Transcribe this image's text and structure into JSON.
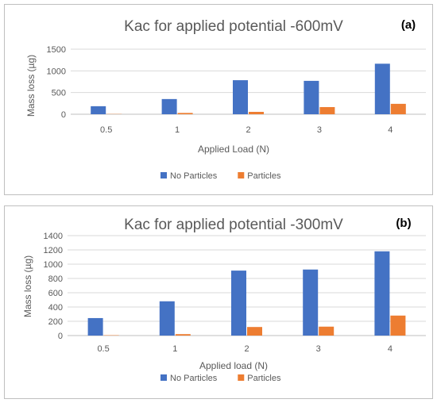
{
  "chart_data": [
    {
      "type": "bar",
      "tag": "(a)",
      "title": "Kac for applied potential -600mV",
      "xlabel": "Applied Load (N)",
      "ylabel": "Mass loss (µg)",
      "categories": [
        "0.5",
        "1",
        "2",
        "3",
        "4"
      ],
      "ylim": [
        0,
        1500
      ],
      "yticks": [
        0,
        500,
        1000,
        1500
      ],
      "grid": true,
      "legend_position": "bottom",
      "series": [
        {
          "name": "No Particles",
          "color": "#4472C4",
          "values": [
            185,
            350,
            785,
            770,
            1165
          ]
        },
        {
          "name": "Particles",
          "color": "#ED7D31",
          "values": [
            5,
            30,
            55,
            165,
            240
          ]
        }
      ]
    },
    {
      "type": "bar",
      "tag": "(b)",
      "title": "Kac for applied potential -300mV",
      "xlabel": "Applied load (N)",
      "ylabel": "Mass loss (µg)",
      "categories": [
        "0.5",
        "1",
        "2",
        "3",
        "4"
      ],
      "ylim": [
        0,
        1400
      ],
      "yticks": [
        0,
        200,
        400,
        600,
        800,
        1000,
        1200,
        1400
      ],
      "grid": true,
      "legend_position": "bottom",
      "series": [
        {
          "name": "No Particles",
          "color": "#4472C4",
          "values": [
            245,
            480,
            910,
            925,
            1180
          ]
        },
        {
          "name": "Particles",
          "color": "#ED7D31",
          "values": [
            5,
            20,
            120,
            125,
            280
          ]
        }
      ]
    }
  ]
}
